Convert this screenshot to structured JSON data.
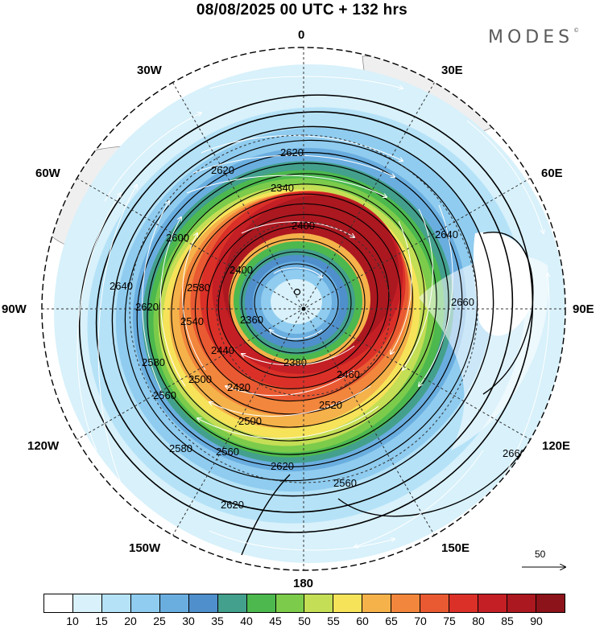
{
  "title": "08/08/2025  00 UTC  + 132 hrs",
  "brand": {
    "name": "MODES",
    "mark": "©"
  },
  "longitude_labels": [
    "0",
    "30E",
    "60E",
    "90E",
    "120E",
    "150E",
    "180",
    "150W",
    "120W",
    "90W",
    "60W",
    "30W"
  ],
  "contour_labels": [
    "2620",
    "2620",
    "2600",
    "2640",
    "2620",
    "2540",
    "2580",
    "2340",
    "2400",
    "2400",
    "2640",
    "2660",
    "2360",
    "2380",
    "2440",
    "2460",
    "2420",
    "2500",
    "2520",
    "2500",
    "2560",
    "2580",
    "2580",
    "2560",
    "2620",
    "2620",
    "2560",
    "2660"
  ],
  "wind_scale": {
    "label": "50"
  },
  "colorbar": {
    "colors": [
      "#ffffff",
      "#d8f1fb",
      "#b5e2f7",
      "#8fccef",
      "#6aaee0",
      "#4f8fcc",
      "#43a08c",
      "#4cb84e",
      "#7ccb4b",
      "#c4de55",
      "#f6e35a",
      "#f5b24a",
      "#f1863c",
      "#e95a32",
      "#da3028",
      "#c41f25",
      "#ab1820",
      "#8b1319"
    ],
    "ticks": [
      "10",
      "15",
      "20",
      "25",
      "30",
      "35",
      "40",
      "45",
      "50",
      "55",
      "60",
      "65",
      "70",
      "75",
      "80",
      "85",
      "90"
    ]
  }
}
